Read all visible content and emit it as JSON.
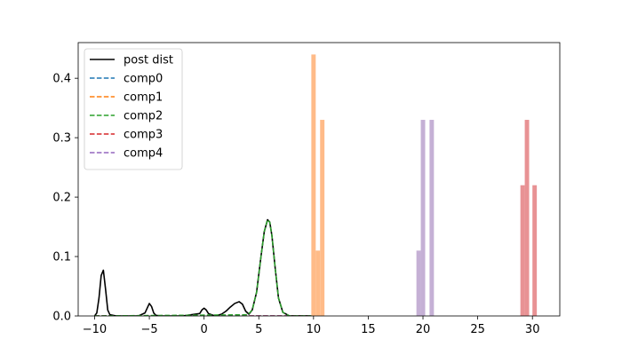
{
  "chart_data": {
    "type": "line",
    "title": "",
    "xlabel": "",
    "ylabel": "",
    "xlim": [
      -11.5,
      32.5
    ],
    "ylim": [
      0,
      0.46
    ],
    "grid": false,
    "legend_position": "top-left",
    "x_ticks": [
      -10,
      -5,
      0,
      5,
      10,
      15,
      20,
      25,
      30
    ],
    "y_ticks": [
      0.0,
      0.1,
      0.2,
      0.3,
      0.4
    ],
    "x_tick_labels": [
      "−10",
      "−5",
      "0",
      "5",
      "10",
      "15",
      "20",
      "25",
      "30"
    ],
    "y_tick_labels": [
      "0.0",
      "0.1",
      "0.2",
      "0.3",
      "0.4"
    ],
    "series": [
      {
        "name": "post dist",
        "style": "solid",
        "color": "#000000",
        "x": [
          -10,
          -9.8,
          -9.6,
          -9.4,
          -9.2,
          -9.0,
          -8.8,
          -8.6,
          -8,
          -6,
          -5.4,
          -5.2,
          -5.0,
          -4.8,
          -4.6,
          -4.4,
          -4,
          -2,
          -0.4,
          -0.2,
          0.0,
          0.2,
          0.4,
          1,
          1.6,
          2.0,
          2.4,
          2.8,
          3.2,
          3.5,
          3.8,
          4.1,
          4.4,
          4.8,
          5.2,
          5.5,
          5.8,
          6.0,
          6.2,
          6.5,
          6.8,
          7.2,
          7.8,
          8.5,
          9.2,
          9.8
        ],
        "y": [
          0.0,
          0.005,
          0.03,
          0.068,
          0.077,
          0.045,
          0.01,
          0.002,
          0.0,
          0.0,
          0.005,
          0.013,
          0.021,
          0.016,
          0.005,
          0.001,
          0.0,
          0.0,
          0.004,
          0.01,
          0.013,
          0.01,
          0.004,
          0.0,
          0.003,
          0.008,
          0.015,
          0.021,
          0.024,
          0.02,
          0.008,
          0.003,
          0.01,
          0.04,
          0.1,
          0.142,
          0.162,
          0.158,
          0.135,
          0.08,
          0.03,
          0.006,
          0.0,
          0.0,
          0.0,
          0.0
        ]
      },
      {
        "name": "comp0",
        "style": "dashed",
        "color": "#1f77b4",
        "x": [
          -10,
          9.8
        ],
        "y": [
          0.0,
          0.0
        ]
      },
      {
        "name": "comp1",
        "style": "dashed",
        "color": "#ff7f0e",
        "x": [
          -10,
          9.8
        ],
        "y": [
          0.0,
          0.0
        ]
      },
      {
        "name": "comp2",
        "style": "dashed",
        "color": "#2ca02c",
        "x": [
          -10,
          4.0,
          4.4,
          4.8,
          5.2,
          5.5,
          5.8,
          6.0,
          6.2,
          6.5,
          6.8,
          7.2,
          7.8,
          9.8
        ],
        "y": [
          0.0,
          0.002,
          0.01,
          0.04,
          0.1,
          0.142,
          0.162,
          0.158,
          0.135,
          0.08,
          0.03,
          0.006,
          0.0,
          0.0
        ]
      },
      {
        "name": "comp3",
        "style": "dashed",
        "color": "#d62728",
        "x": [
          -10,
          9.8
        ],
        "y": [
          0.0,
          0.0
        ]
      },
      {
        "name": "comp4",
        "style": "dashed",
        "color": "#9467bd",
        "x": [
          -10,
          9.8
        ],
        "y": [
          0.0,
          0.0
        ]
      }
    ],
    "histograms": [
      {
        "color": "#ffbb88",
        "opacity": 1.0,
        "bins": [
          {
            "x0": 9.8,
            "x1": 10.2,
            "value": 0.44
          },
          {
            "x0": 10.2,
            "x1": 10.6,
            "value": 0.11
          },
          {
            "x0": 10.6,
            "x1": 11.0,
            "value": 0.33
          }
        ]
      },
      {
        "color": "#c5b0d5",
        "opacity": 1.0,
        "bins": [
          {
            "x0": 19.4,
            "x1": 19.8,
            "value": 0.11
          },
          {
            "x0": 19.8,
            "x1": 20.2,
            "value": 0.33
          },
          {
            "x0": 20.6,
            "x1": 21.0,
            "value": 0.33
          }
        ]
      },
      {
        "color": "#e89294",
        "opacity": 1.0,
        "bins": [
          {
            "x0": 28.9,
            "x1": 29.3,
            "value": 0.22
          },
          {
            "x0": 29.3,
            "x1": 29.7,
            "value": 0.33
          },
          {
            "x0": 30.0,
            "x1": 30.4,
            "value": 0.22
          }
        ]
      }
    ]
  }
}
